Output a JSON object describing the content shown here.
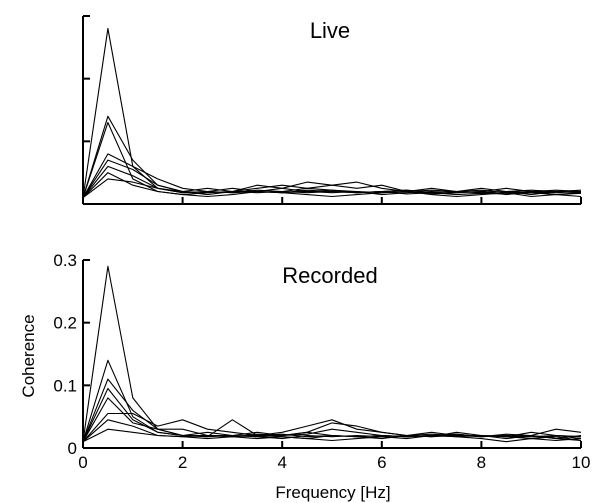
{
  "chart_data": [
    {
      "type": "line",
      "title": "Live",
      "xlabel": "",
      "ylabel": "",
      "xlim": [
        0,
        10
      ],
      "ylim": [
        0,
        0.3
      ],
      "xticks": [
        0,
        2,
        4,
        6,
        8,
        10
      ],
      "yticks": [
        0,
        0.1,
        0.2,
        0.3
      ],
      "xtick_labels": [
        "",
        "",
        "",
        "",
        "",
        ""
      ],
      "ytick_labels": [
        "",
        "",
        "",
        ""
      ],
      "grid": false,
      "x": [
        0,
        0.5,
        1,
        1.5,
        2,
        2.5,
        3,
        3.5,
        4,
        4.5,
        5,
        5.5,
        6,
        6.5,
        7,
        7.5,
        8,
        8.5,
        9,
        9.5,
        10
      ],
      "series": [
        {
          "values": [
            0.01,
            0.28,
            0.06,
            0.025,
            0.018,
            0.02,
            0.018,
            0.022,
            0.02,
            0.018,
            0.02,
            0.018,
            0.02,
            0.016,
            0.018,
            0.015,
            0.017,
            0.016,
            0.018,
            0.015,
            0.017
          ]
        },
        {
          "values": [
            0.01,
            0.13,
            0.04,
            0.02,
            0.015,
            0.018,
            0.02,
            0.025,
            0.03,
            0.025,
            0.03,
            0.035,
            0.025,
            0.02,
            0.022,
            0.02,
            0.018,
            0.02,
            0.015,
            0.02,
            0.018
          ]
        },
        {
          "values": [
            0.01,
            0.14,
            0.07,
            0.03,
            0.02,
            0.015,
            0.02,
            0.02,
            0.025,
            0.02,
            0.022,
            0.02,
            0.018,
            0.02,
            0.016,
            0.018,
            0.02,
            0.015,
            0.02,
            0.018,
            0.02
          ]
        },
        {
          "values": [
            0.01,
            0.08,
            0.06,
            0.04,
            0.025,
            0.02,
            0.025,
            0.02,
            0.018,
            0.022,
            0.02,
            0.018,
            0.02,
            0.022,
            0.018,
            0.02,
            0.018,
            0.02,
            0.018,
            0.02,
            0.018
          ]
        },
        {
          "values": [
            0.01,
            0.07,
            0.055,
            0.03,
            0.02,
            0.025,
            0.02,
            0.03,
            0.025,
            0.035,
            0.03,
            0.025,
            0.03,
            0.02,
            0.025,
            0.02,
            0.025,
            0.02,
            0.022,
            0.02,
            0.022
          ]
        },
        {
          "values": [
            0.01,
            0.06,
            0.045,
            0.025,
            0.018,
            0.02,
            0.018,
            0.02,
            0.018,
            0.02,
            0.018,
            0.02,
            0.015,
            0.018,
            0.02,
            0.018,
            0.02,
            0.025,
            0.02,
            0.015,
            0.018
          ]
        },
        {
          "values": [
            0.01,
            0.05,
            0.03,
            0.02,
            0.015,
            0.012,
            0.015,
            0.02,
            0.018,
            0.015,
            0.012,
            0.015,
            0.018,
            0.02,
            0.015,
            0.012,
            0.015,
            0.018,
            0.012,
            0.015,
            0.012
          ]
        },
        {
          "values": [
            0.01,
            0.04,
            0.035,
            0.025,
            0.02,
            0.018,
            0.02,
            0.018,
            0.02,
            0.025,
            0.022,
            0.018,
            0.02,
            0.022,
            0.018,
            0.02,
            0.022,
            0.018,
            0.02,
            0.022,
            0.02
          ]
        }
      ]
    },
    {
      "type": "line",
      "title": "Recorded",
      "xlabel": "Frequency [Hz]",
      "ylabel": "Coherence",
      "xlim": [
        0,
        10
      ],
      "ylim": [
        0,
        0.3
      ],
      "xticks": [
        0,
        2,
        4,
        6,
        8,
        10
      ],
      "yticks": [
        0,
        0.1,
        0.2,
        0.3
      ],
      "xtick_labels": [
        "0",
        "2",
        "4",
        "6",
        "8",
        "10"
      ],
      "ytick_labels": [
        "0",
        "0.1",
        "0.2",
        "0.3"
      ],
      "grid": false,
      "x": [
        0,
        0.5,
        1,
        1.5,
        2,
        2.5,
        3,
        3.5,
        4,
        4.5,
        5,
        5.5,
        6,
        6.5,
        7,
        7.5,
        8,
        8.5,
        9,
        9.5,
        10
      ],
      "series": [
        {
          "values": [
            0.01,
            0.29,
            0.08,
            0.03,
            0.02,
            0.02,
            0.018,
            0.022,
            0.02,
            0.025,
            0.02,
            0.018,
            0.02,
            0.018,
            0.02,
            0.018,
            0.02,
            0.018,
            0.02,
            0.015,
            0.02
          ]
        },
        {
          "values": [
            0.01,
            0.14,
            0.05,
            0.025,
            0.02,
            0.018,
            0.02,
            0.018,
            0.02,
            0.022,
            0.03,
            0.025,
            0.02,
            0.018,
            0.02,
            0.022,
            0.018,
            0.02,
            0.018,
            0.02,
            0.015
          ]
        },
        {
          "values": [
            0.01,
            0.11,
            0.06,
            0.03,
            0.03,
            0.02,
            0.02,
            0.018,
            0.015,
            0.02,
            0.018,
            0.02,
            0.018,
            0.02,
            0.022,
            0.02,
            0.02,
            0.018,
            0.015,
            0.02,
            0.018
          ]
        },
        {
          "values": [
            0.01,
            0.095,
            0.045,
            0.025,
            0.02,
            0.018,
            0.045,
            0.02,
            0.025,
            0.035,
            0.045,
            0.03,
            0.025,
            0.02,
            0.025,
            0.02,
            0.02,
            0.015,
            0.02,
            0.015,
            0.012
          ]
        },
        {
          "values": [
            0.01,
            0.08,
            0.04,
            0.03,
            0.02,
            0.025,
            0.02,
            0.025,
            0.02,
            0.025,
            0.04,
            0.035,
            0.025,
            0.02,
            0.018,
            0.02,
            0.018,
            0.022,
            0.02,
            0.03,
            0.025
          ]
        },
        {
          "values": [
            0.01,
            0.055,
            0.055,
            0.035,
            0.045,
            0.03,
            0.025,
            0.02,
            0.018,
            0.015,
            0.02,
            0.018,
            0.015,
            0.02,
            0.018,
            0.025,
            0.02,
            0.018,
            0.025,
            0.02,
            0.018
          ]
        },
        {
          "values": [
            0.01,
            0.045,
            0.035,
            0.02,
            0.018,
            0.015,
            0.018,
            0.015,
            0.018,
            0.015,
            0.012,
            0.015,
            0.018,
            0.015,
            0.02,
            0.018,
            0.015,
            0.01,
            0.015,
            0.012,
            0.015
          ]
        },
        {
          "values": [
            0.01,
            0.03,
            0.025,
            0.02,
            0.018,
            0.02,
            0.018,
            0.02,
            0.022,
            0.018,
            0.02,
            0.018,
            0.02,
            0.018,
            0.02,
            0.022,
            0.018,
            0.02,
            0.015,
            0.018,
            0.012
          ]
        }
      ]
    }
  ]
}
